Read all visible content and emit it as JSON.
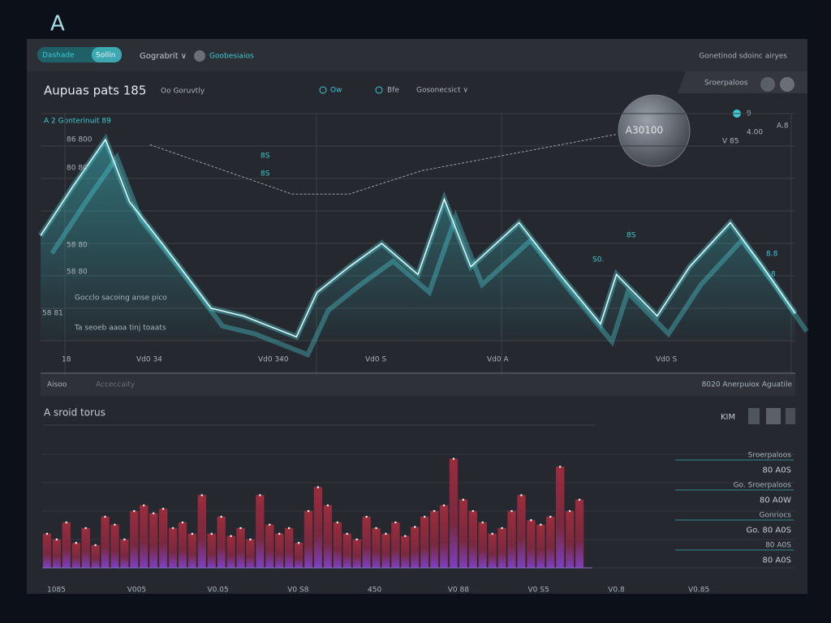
{
  "header": {
    "logo": "A",
    "tabs": [
      "Dashade",
      "Sollin"
    ],
    "menu": "Gograbrit ∨",
    "search": "Goobesiaios",
    "right": "Gonetinod sdoinc airyes"
  },
  "panel": {
    "title": "Aupuas pats 185",
    "subtitle": "Oo Goruvtly",
    "filters": [
      "Ow",
      "Bfe",
      "Gosonecsict ∨"
    ],
    "legend": "A 2 Gonterinuit 89",
    "badge": "A30100",
    "badge_label": "Sroerpaloos",
    "side": [
      "9",
      "4.00",
      "V 85",
      "A.8"
    ]
  },
  "chart_data": [
    {
      "type": "line",
      "xlim": [
        0,
        100
      ],
      "ylim": [
        0,
        100
      ],
      "series": [
        {
          "color": "#4fd8e0",
          "x": [
            0,
            4.3,
            8.6,
            11.8,
            16.1,
            22.6,
            26.9,
            33.9,
            36.6,
            40.9,
            45.2,
            50,
            53.5,
            57,
            63.4,
            68.8,
            74.2,
            76.3,
            81.7,
            86,
            91.4,
            95.7,
            100
          ],
          "values": [
            53,
            72,
            90,
            66,
            50,
            25,
            22,
            14,
            31,
            41,
            50,
            38,
            67,
            41,
            58,
            38,
            19,
            38,
            22,
            41,
            58,
            41,
            23
          ]
        },
        {
          "color": "#9aa0a6",
          "style": "dashed",
          "x": [
            14.5,
            33.3,
            40.9,
            50.5,
            76.3
          ],
          "values": [
            88,
            69,
            69,
            78,
            92
          ]
        }
      ],
      "y_labels": [
        "86 800",
        "80 80",
        "58 80",
        "58 80",
        "58 81",
        "Gocclo sacoing anse pico",
        "Ta seoeb aaoa tinj toaats"
      ],
      "x_labels": [
        "18",
        "Vd0 34",
        "Vd0 340",
        "Vd0 S",
        "Vd0 A",
        "Vd0 S"
      ],
      "annotations": [
        "8S",
        "8S",
        "S0.",
        "8S",
        "8.8",
        "8"
      ]
    },
    {
      "type": "bar",
      "ylim": [
        0,
        100
      ],
      "color": "#8a2a3a",
      "color2": "#7a3fc0",
      "values": [
        30,
        25,
        40,
        22,
        35,
        20,
        45,
        38,
        25,
        50,
        55,
        48,
        52,
        35,
        40,
        30,
        64,
        30,
        45,
        28,
        35,
        25,
        64,
        38,
        30,
        35,
        22,
        50,
        71,
        55,
        40,
        30,
        25,
        45,
        35,
        30,
        40,
        28,
        36,
        45,
        50,
        55,
        96,
        60,
        50,
        40,
        30,
        35,
        50,
        64,
        42,
        38,
        45,
        89,
        50,
        60
      ],
      "x_labels": [
        "1085",
        "V005",
        "V0.05",
        "V0 S8",
        "450",
        "V0 88",
        "V0 S5",
        "V0.8",
        "V0.85"
      ]
    }
  ],
  "footer": {
    "left": "Aisoo",
    "mid": "Acceccaity",
    "right": "8020 Anerpuiox Aguatile"
  },
  "bottom": {
    "title": "A sroid torus",
    "controls": "KIM",
    "list": [
      "Sroerpaloos",
      "80 A0S",
      "Go. Sroerpaloos",
      "80 A0W",
      "Gonriocs",
      "Go. 80 A0S",
      "80 A0S",
      "80 A0S"
    ]
  }
}
